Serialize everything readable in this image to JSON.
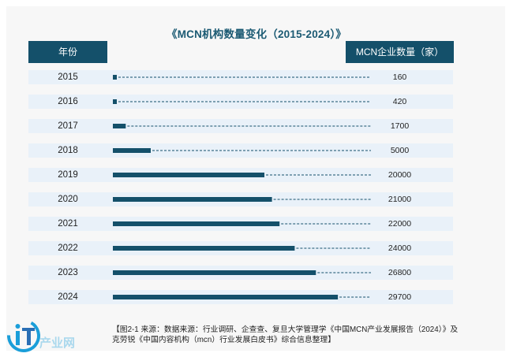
{
  "chart_data": {
    "type": "bar",
    "orientation": "horizontal",
    "title": "《MCN机构数量变化（2015-2024）》",
    "category_header": "年份",
    "value_header": "MCN企业数量（家）",
    "categories": [
      "2015",
      "2016",
      "2017",
      "2018",
      "2019",
      "2020",
      "2021",
      "2022",
      "2023",
      "2024"
    ],
    "values": [
      160,
      420,
      1700,
      5000,
      20000,
      21000,
      22000,
      24000,
      26800,
      29700
    ],
    "value_labels": [
      "160",
      "420",
      "1700",
      "5000",
      "20000",
      "21000",
      "22000",
      "24000",
      "26800",
      "29700"
    ],
    "xlim": [
      0,
      35000
    ],
    "grid": false,
    "legend": "none",
    "colors": {
      "bar": "#14506a",
      "row": "#e9f1f9",
      "header": "#14506a",
      "title": "#1b5a73"
    }
  },
  "caption": {
    "line1": "【图2-1 来源：数据来源：行业调研、企查查、复旦大学管理学《中国MCN产业发展报告（2024）》及",
    "line2": "克劳锐《中国内容机构（mcn）行业发展白皮书》综合信息整理】"
  },
  "watermark_logo": {
    "text": "产业网",
    "icon": "iT-logo-icon",
    "color": "#1a9ed9"
  }
}
